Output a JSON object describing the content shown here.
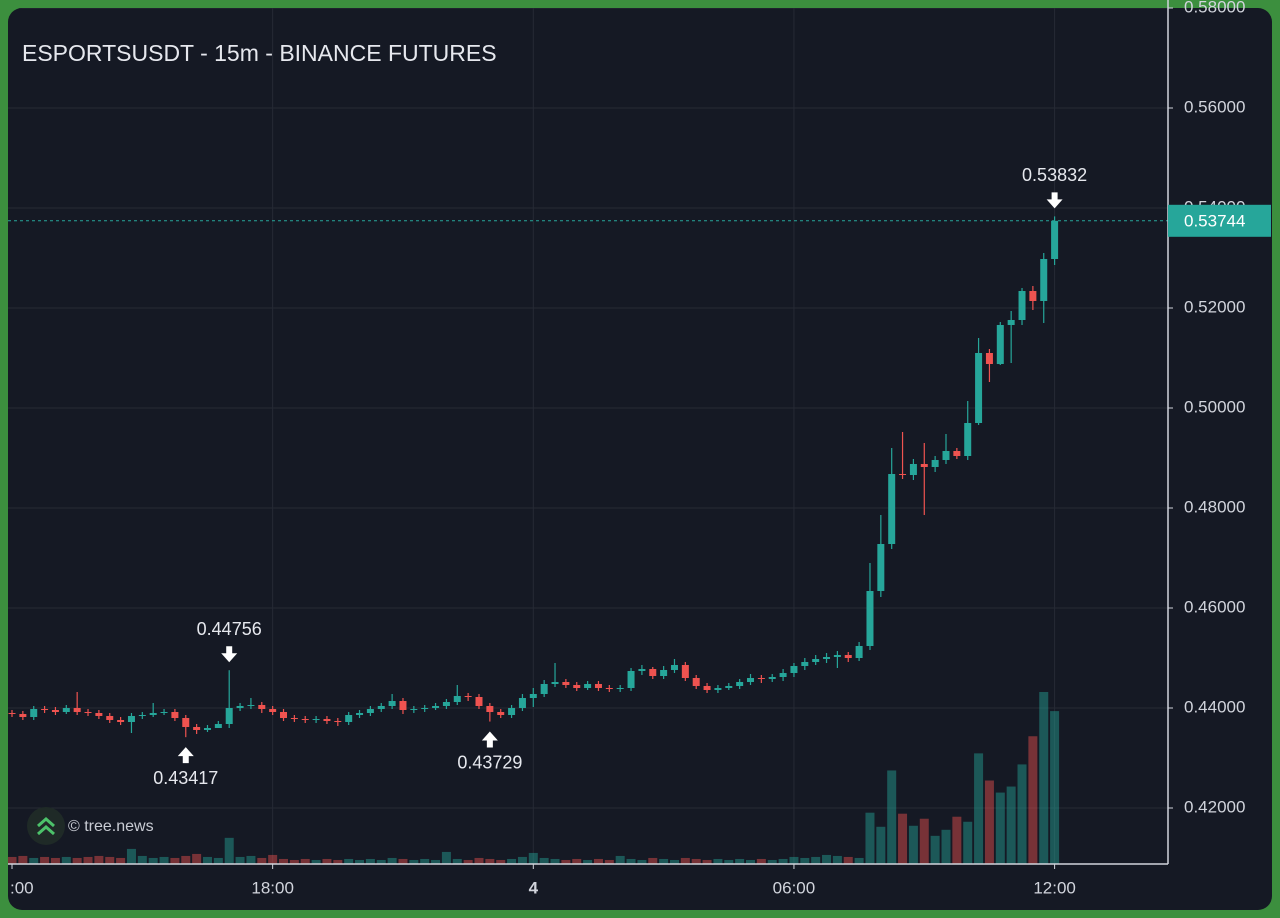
{
  "chart_data": {
    "type": "candlestick",
    "title": "ESPORTSUSDT - 15m - BINANCE FUTURES",
    "watermark": "© tree.news",
    "up_color": "#26a69a",
    "down_color": "#ef5350",
    "grid": true,
    "categories": [
      ":00",
      null,
      null,
      null,
      null,
      null,
      null,
      null,
      null,
      null,
      null,
      null,
      null,
      null,
      null,
      null,
      null,
      null,
      null,
      null,
      null,
      null,
      null,
      null,
      "18:00",
      null,
      null,
      null,
      null,
      null,
      null,
      null,
      null,
      null,
      null,
      null,
      null,
      null,
      null,
      null,
      null,
      null,
      null,
      null,
      null,
      null,
      null,
      null,
      "4",
      null,
      null,
      null,
      null,
      null,
      null,
      null,
      null,
      null,
      null,
      null,
      null,
      null,
      null,
      null,
      null,
      null,
      null,
      null,
      null,
      null,
      null,
      null,
      "06:00",
      null,
      null,
      null,
      null,
      null,
      null,
      null,
      null,
      null,
      null,
      null,
      null,
      null,
      null,
      null,
      null,
      null,
      null,
      null,
      null,
      null,
      null,
      null,
      "12:00"
    ],
    "open": [
      0.439,
      0.4388,
      0.4382,
      0.4398,
      0.4396,
      0.4392,
      0.44,
      0.4392,
      0.439,
      0.4384,
      0.4376,
      0.4372,
      0.4384,
      0.4386,
      0.439,
      0.4392,
      0.438,
      0.4362,
      0.4356,
      0.436,
      0.4368,
      0.44,
      0.4404,
      0.4406,
      0.4398,
      0.4392,
      0.438,
      0.4378,
      0.4376,
      0.4378,
      0.4374,
      0.4372,
      0.4386,
      0.439,
      0.4398,
      0.4404,
      0.4414,
      0.4396,
      0.4398,
      0.44,
      0.4404,
      0.4412,
      0.4424,
      0.4422,
      0.4404,
      0.4392,
      0.4386,
      0.44,
      0.442,
      0.4428,
      0.4448,
      0.4452,
      0.4446,
      0.444,
      0.4448,
      0.444,
      0.4438,
      0.444,
      0.4474,
      0.4478,
      0.4464,
      0.4476,
      0.4486,
      0.446,
      0.4444,
      0.4436,
      0.444,
      0.4444,
      0.4452,
      0.446,
      0.4458,
      0.4462,
      0.447,
      0.4484,
      0.4492,
      0.4498,
      0.4502,
      0.4506,
      0.45,
      0.4524,
      0.4634,
      0.4728,
      0.4868,
      0.4866,
      0.4888,
      0.4882,
      0.4896,
      0.4914,
      0.4904,
      0.497,
      0.511,
      0.5088,
      0.5166,
      0.5176,
      0.5234,
      0.5214,
      0.5298
    ],
    "high": [
      0.4396,
      0.4394,
      0.4404,
      0.4404,
      0.4402,
      0.4406,
      0.4432,
      0.4398,
      0.4396,
      0.439,
      0.4382,
      0.439,
      0.4392,
      0.441,
      0.4398,
      0.4398,
      0.4386,
      0.4368,
      0.4366,
      0.4374,
      0.44756,
      0.441,
      0.442,
      0.4412,
      0.4404,
      0.4398,
      0.4386,
      0.4384,
      0.4384,
      0.4384,
      0.438,
      0.4392,
      0.4396,
      0.4404,
      0.441,
      0.4428,
      0.442,
      0.4404,
      0.4406,
      0.441,
      0.4418,
      0.4446,
      0.443,
      0.4428,
      0.441,
      0.4398,
      0.4406,
      0.4428,
      0.444,
      0.4456,
      0.449,
      0.4458,
      0.4452,
      0.4454,
      0.4454,
      0.4446,
      0.4446,
      0.448,
      0.4486,
      0.4482,
      0.4484,
      0.4498,
      0.4492,
      0.4466,
      0.445,
      0.4446,
      0.445,
      0.4458,
      0.4468,
      0.4466,
      0.4468,
      0.4478,
      0.449,
      0.45,
      0.4506,
      0.451,
      0.4514,
      0.4512,
      0.4532,
      0.469,
      0.4786,
      0.492,
      0.4952,
      0.4898,
      0.493,
      0.4904,
      0.4948,
      0.492,
      0.5014,
      0.514,
      0.5118,
      0.5172,
      0.5194,
      0.524,
      0.5244,
      0.531,
      0.53832
    ],
    "low": [
      0.4382,
      0.4376,
      0.4376,
      0.439,
      0.4386,
      0.4388,
      0.4386,
      0.4384,
      0.4378,
      0.437,
      0.4366,
      0.435,
      0.4378,
      0.4382,
      0.4386,
      0.4374,
      0.43417,
      0.4348,
      0.4352,
      0.436,
      0.436,
      0.4394,
      0.4398,
      0.439,
      0.4386,
      0.4374,
      0.4372,
      0.437,
      0.437,
      0.4368,
      0.4364,
      0.4366,
      0.438,
      0.4384,
      0.4392,
      0.4398,
      0.4388,
      0.439,
      0.4392,
      0.4396,
      0.4398,
      0.4406,
      0.4414,
      0.4398,
      0.43729,
      0.438,
      0.438,
      0.4394,
      0.4402,
      0.4422,
      0.4442,
      0.444,
      0.4434,
      0.4436,
      0.4434,
      0.4432,
      0.4432,
      0.4434,
      0.4466,
      0.4458,
      0.4458,
      0.447,
      0.4454,
      0.4438,
      0.443,
      0.443,
      0.4436,
      0.4438,
      0.4446,
      0.445,
      0.4452,
      0.4454,
      0.4462,
      0.4476,
      0.4486,
      0.449,
      0.448,
      0.4492,
      0.4494,
      0.4516,
      0.4622,
      0.4718,
      0.4858,
      0.4856,
      0.4786,
      0.4872,
      0.4888,
      0.4898,
      0.4896,
      0.4966,
      0.5052,
      0.5086,
      0.509,
      0.5166,
      0.5196,
      0.517,
      0.5286
    ],
    "close": [
      0.4388,
      0.4382,
      0.4398,
      0.4396,
      0.4392,
      0.44,
      0.4392,
      0.439,
      0.4384,
      0.4376,
      0.4372,
      0.4384,
      0.4386,
      0.439,
      0.4392,
      0.438,
      0.4362,
      0.4356,
      0.436,
      0.4368,
      0.44,
      0.4404,
      0.4406,
      0.4398,
      0.4392,
      0.438,
      0.4378,
      0.4376,
      0.4378,
      0.4374,
      0.4372,
      0.4386,
      0.439,
      0.4398,
      0.4404,
      0.4414,
      0.4396,
      0.4398,
      0.44,
      0.4404,
      0.4412,
      0.4424,
      0.4422,
      0.4404,
      0.4392,
      0.4386,
      0.44,
      0.442,
      0.4428,
      0.4448,
      0.4452,
      0.4446,
      0.444,
      0.4448,
      0.444,
      0.4438,
      0.444,
      0.4474,
      0.4478,
      0.4464,
      0.4476,
      0.4486,
      0.446,
      0.4444,
      0.4436,
      0.444,
      0.4444,
      0.4452,
      0.446,
      0.4458,
      0.4462,
      0.447,
      0.4484,
      0.4492,
      0.4498,
      0.4502,
      0.4506,
      0.45,
      0.4524,
      0.4634,
      0.4728,
      0.4868,
      0.4866,
      0.4888,
      0.4882,
      0.4896,
      0.4914,
      0.4904,
      0.497,
      0.511,
      0.5088,
      0.5166,
      0.5176,
      0.5234,
      0.5214,
      0.5298,
      0.53744
    ],
    "volume": [
      7,
      8,
      6,
      7,
      6,
      7,
      6,
      7,
      8,
      7,
      6,
      15,
      8,
      6,
      7,
      6,
      8,
      10,
      7,
      6,
      26,
      7,
      8,
      6,
      9,
      5,
      4,
      5,
      4,
      5,
      4,
      5,
      4,
      5,
      4,
      6,
      5,
      4,
      5,
      4,
      12,
      5,
      4,
      6,
      5,
      4,
      5,
      7,
      11,
      6,
      5,
      4,
      5,
      4,
      5,
      4,
      8,
      5,
      4,
      6,
      5,
      4,
      6,
      5,
      4,
      5,
      4,
      5,
      4,
      5,
      4,
      5,
      7,
      6,
      7,
      9,
      8,
      7,
      6,
      51,
      37,
      93,
      50,
      38,
      45,
      28,
      34,
      47,
      42,
      110,
      83,
      71,
      77,
      99,
      127,
      171,
      152
    ],
    "markers": [
      {
        "value": 0.44756,
        "position": "above"
      },
      {
        "value": 0.43417,
        "position": "below"
      },
      {
        "value": 0.43729,
        "position": "below"
      },
      {
        "value": 0.53832,
        "position": "above"
      }
    ],
    "last_price": 0.53744,
    "ylim": [
      0.4088,
      0.58
    ],
    "yticks": [
      {
        "value": 0.42,
        "label": "0.42000"
      },
      {
        "value": 0.44,
        "label": "0.44000"
      },
      {
        "value": 0.46,
        "label": "0.46000"
      },
      {
        "value": 0.48,
        "label": "0.48000"
      },
      {
        "value": 0.5,
        "label": "0.50000"
      },
      {
        "value": 0.52,
        "label": "0.52000"
      },
      {
        "value": 0.54,
        "label": "0.54000"
      },
      {
        "value": 0.56,
        "label": "0.56000"
      },
      {
        "value": 0.58,
        "label": "0.58000"
      }
    ]
  }
}
